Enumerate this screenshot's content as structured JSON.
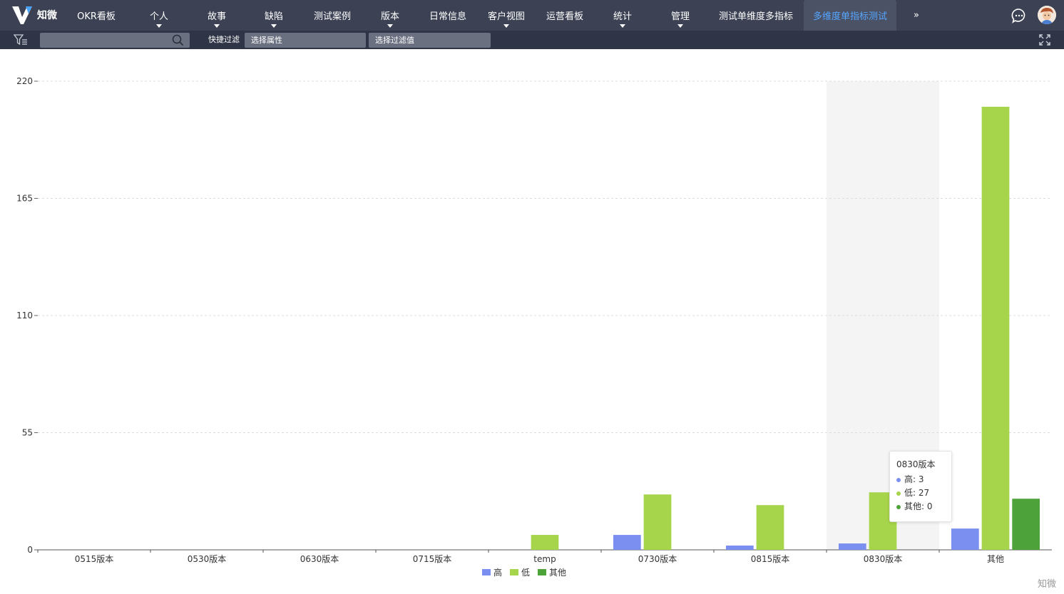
{
  "app": {
    "logo_text": "知微"
  },
  "nav": {
    "items": [
      {
        "label": "OKR看板",
        "dropdown": false
      },
      {
        "label": "个人",
        "dropdown": true
      },
      {
        "label": "故事",
        "dropdown": true
      },
      {
        "label": "缺陷",
        "dropdown": true
      },
      {
        "label": "测试案例",
        "dropdown": false
      },
      {
        "label": "版本",
        "dropdown": true
      },
      {
        "label": "日常信息",
        "dropdown": false
      },
      {
        "label": "客户视图",
        "dropdown": true
      },
      {
        "label": "运营看板",
        "dropdown": false
      },
      {
        "label": "统计",
        "dropdown": true
      },
      {
        "label": "管理",
        "dropdown": true
      },
      {
        "label": "测试单维度多指标",
        "dropdown": false
      },
      {
        "label": "多维度单指标测试",
        "dropdown": false,
        "active": true
      }
    ],
    "more_label": "»"
  },
  "filterbar": {
    "search_value": "",
    "quick_filter_label": "快捷过滤",
    "attribute_select": "选择属性",
    "value_select": "选择过滤值"
  },
  "chart_data": {
    "type": "bar",
    "categories": [
      "0515版本",
      "0530版本",
      "0630版本",
      "0715版本",
      "temp",
      "0730版本",
      "0815版本",
      "0830版本",
      "其他"
    ],
    "series": [
      {
        "name": "高",
        "color": "#7b8ff0",
        "values": [
          0,
          0,
          0,
          0,
          0,
          7,
          2,
          3,
          10
        ]
      },
      {
        "name": "低",
        "color": "#a6d44a",
        "values": [
          0,
          0,
          0,
          0,
          7,
          26,
          21,
          27,
          208
        ]
      },
      {
        "name": "其他",
        "color": "#4ea23a",
        "values": [
          0,
          0,
          0,
          0,
          0,
          0,
          0,
          0,
          24
        ]
      }
    ],
    "yticks": [
      "0",
      "55",
      "110",
      "165",
      "220"
    ],
    "ylim": [
      0,
      220
    ],
    "grid": true,
    "legend_position": "bottom-center",
    "highlight_category": "0830版本",
    "tooltip": {
      "title": "0830版本",
      "rows": [
        {
          "label": "高: 3",
          "color": "#7b8ff0"
        },
        {
          "label": "低: 27",
          "color": "#a6d44a"
        },
        {
          "label": "其他: 0",
          "color": "#4ea23a"
        }
      ]
    }
  },
  "watermark": "知微"
}
